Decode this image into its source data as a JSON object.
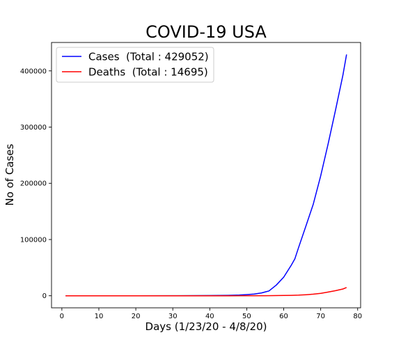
{
  "chart_data": {
    "type": "line",
    "title": "COVID-19 USA",
    "xlabel": "Days (1/23/20 - 4/8/20)",
    "ylabel": "No of Cases",
    "xlim": [
      -2.8,
      80.8
    ],
    "ylim": [
      -21450,
      450500
    ],
    "xticks": [
      0,
      10,
      20,
      30,
      40,
      50,
      60,
      70,
      80
    ],
    "yticks": [
      0,
      100000,
      200000,
      300000,
      400000
    ],
    "grid": false,
    "legend": "top-left",
    "series": [
      {
        "name": "Cases  (Total : 429052)",
        "color": "#0000ff",
        "x": [
          1,
          10,
          20,
          30,
          40,
          45,
          48,
          50,
          52,
          54,
          56,
          58,
          60,
          62,
          63,
          64,
          66,
          68,
          70,
          72,
          74,
          76,
          77
        ],
        "values": [
          1,
          12,
          15,
          60,
          300,
          700,
          1300,
          2100,
          3000,
          5000,
          8500,
          19000,
          33000,
          54000,
          65500,
          85500,
          124000,
          163000,
          213000,
          270000,
          330000,
          392000,
          429052
        ]
      },
      {
        "name": "Deaths  (Total : 14695)",
        "color": "#ff0000",
        "x": [
          1,
          10,
          20,
          30,
          40,
          45,
          50,
          55,
          60,
          62,
          64,
          66,
          68,
          70,
          72,
          74,
          76,
          77
        ],
        "values": [
          0,
          0,
          0,
          0,
          0,
          10,
          50,
          150,
          500,
          700,
          1100,
          1800,
          2800,
          4200,
          6500,
          9000,
          12000,
          14695
        ]
      }
    ]
  }
}
